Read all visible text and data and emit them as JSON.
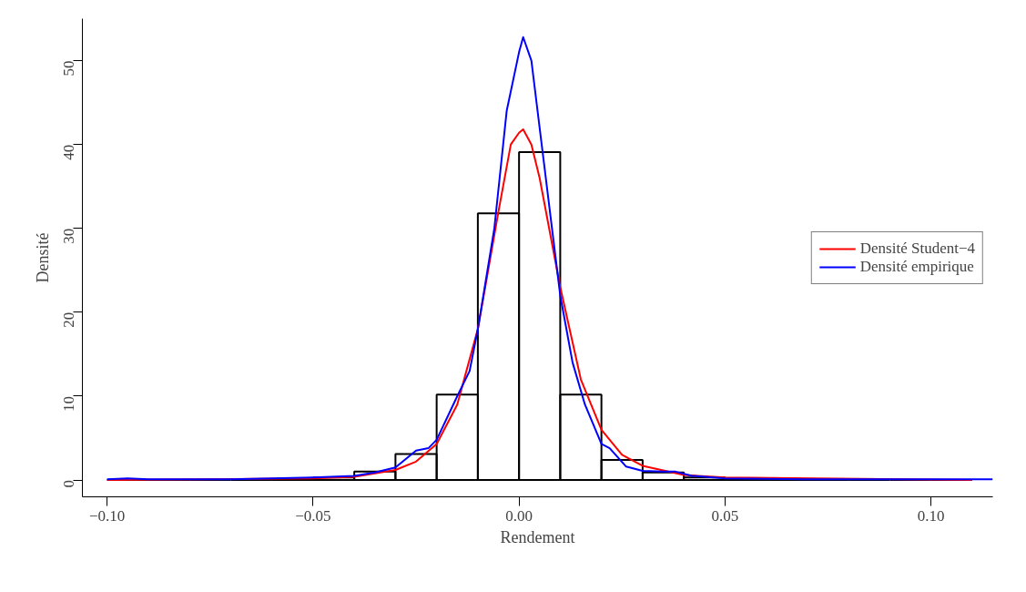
{
  "chart_data": {
    "type": "histogram",
    "xlabel": "Rendement",
    "ylabel": "Densité",
    "bins": [
      -0.1,
      -0.09,
      -0.08,
      -0.07,
      -0.06,
      -0.05,
      -0.04,
      -0.03,
      -0.02,
      -0.01,
      0.0,
      0.01,
      0.02,
      0.03,
      0.04,
      0.05,
      0.06,
      0.07,
      0.08,
      0.09,
      0.1,
      0.11
    ],
    "values": [
      0,
      0,
      0,
      0,
      0.1,
      0.3,
      1.0,
      3.1,
      10.2,
      31.8,
      39.1,
      10.2,
      2.4,
      0.9,
      0.3,
      0.1,
      0.1,
      0,
      0,
      0,
      0
    ],
    "color": "#000000",
    "series": [
      {
        "name": "Densité Student−4",
        "type": "line",
        "color": "#ff0000",
        "x": [
          -0.1,
          -0.05,
          -0.04,
          -0.03,
          -0.025,
          -0.02,
          -0.015,
          -0.01,
          -0.005,
          -0.002,
          0.0,
          0.001,
          0.003,
          0.005,
          0.01,
          0.015,
          0.02,
          0.025,
          0.03,
          0.04,
          0.05,
          0.11
        ],
        "values": [
          0.0,
          0.2,
          0.4,
          1.2,
          2.2,
          4.3,
          9,
          18,
          32,
          40,
          41.4,
          41.8,
          40,
          36,
          23,
          12,
          6,
          3,
          1.7,
          0.6,
          0.3,
          0.0
        ]
      },
      {
        "name": "Densité empirique",
        "type": "line",
        "color": "#0000ff",
        "x": [
          -0.1,
          -0.095,
          -0.09,
          -0.07,
          -0.05,
          -0.04,
          -0.035,
          -0.03,
          -0.025,
          -0.022,
          -0.02,
          -0.015,
          -0.012,
          -0.01,
          -0.006,
          -0.003,
          0.0,
          0.001,
          0.003,
          0.006,
          0.01,
          0.013,
          0.016,
          0.02,
          0.022,
          0.026,
          0.03,
          0.035,
          0.038,
          0.042,
          0.05,
          0.07,
          0.11,
          0.115
        ],
        "values": [
          0.1,
          0.2,
          0.1,
          0.1,
          0.3,
          0.5,
          0.9,
          1.5,
          3.5,
          3.8,
          4.8,
          10,
          13,
          18,
          30,
          44,
          51,
          52.8,
          50,
          38,
          22,
          14,
          9,
          4.3,
          3.8,
          1.6,
          1.1,
          1.0,
          1.0,
          0.5,
          0.2,
          0.1,
          0.1,
          0.1
        ]
      }
    ],
    "xlim": [
      -0.106,
      0.115
    ],
    "ylim": [
      -2,
      55
    ],
    "xticks": [
      {
        "value": -0.1,
        "label": "−0.10"
      },
      {
        "value": -0.05,
        "label": "−0.05"
      },
      {
        "value": 0,
        "label": "0.00"
      },
      {
        "value": 0.05,
        "label": "0.05"
      },
      {
        "value": 0.1,
        "label": "0.10"
      }
    ],
    "yticks": [
      0,
      10,
      20,
      30,
      40,
      50
    ],
    "legend": "right",
    "grid": false
  }
}
